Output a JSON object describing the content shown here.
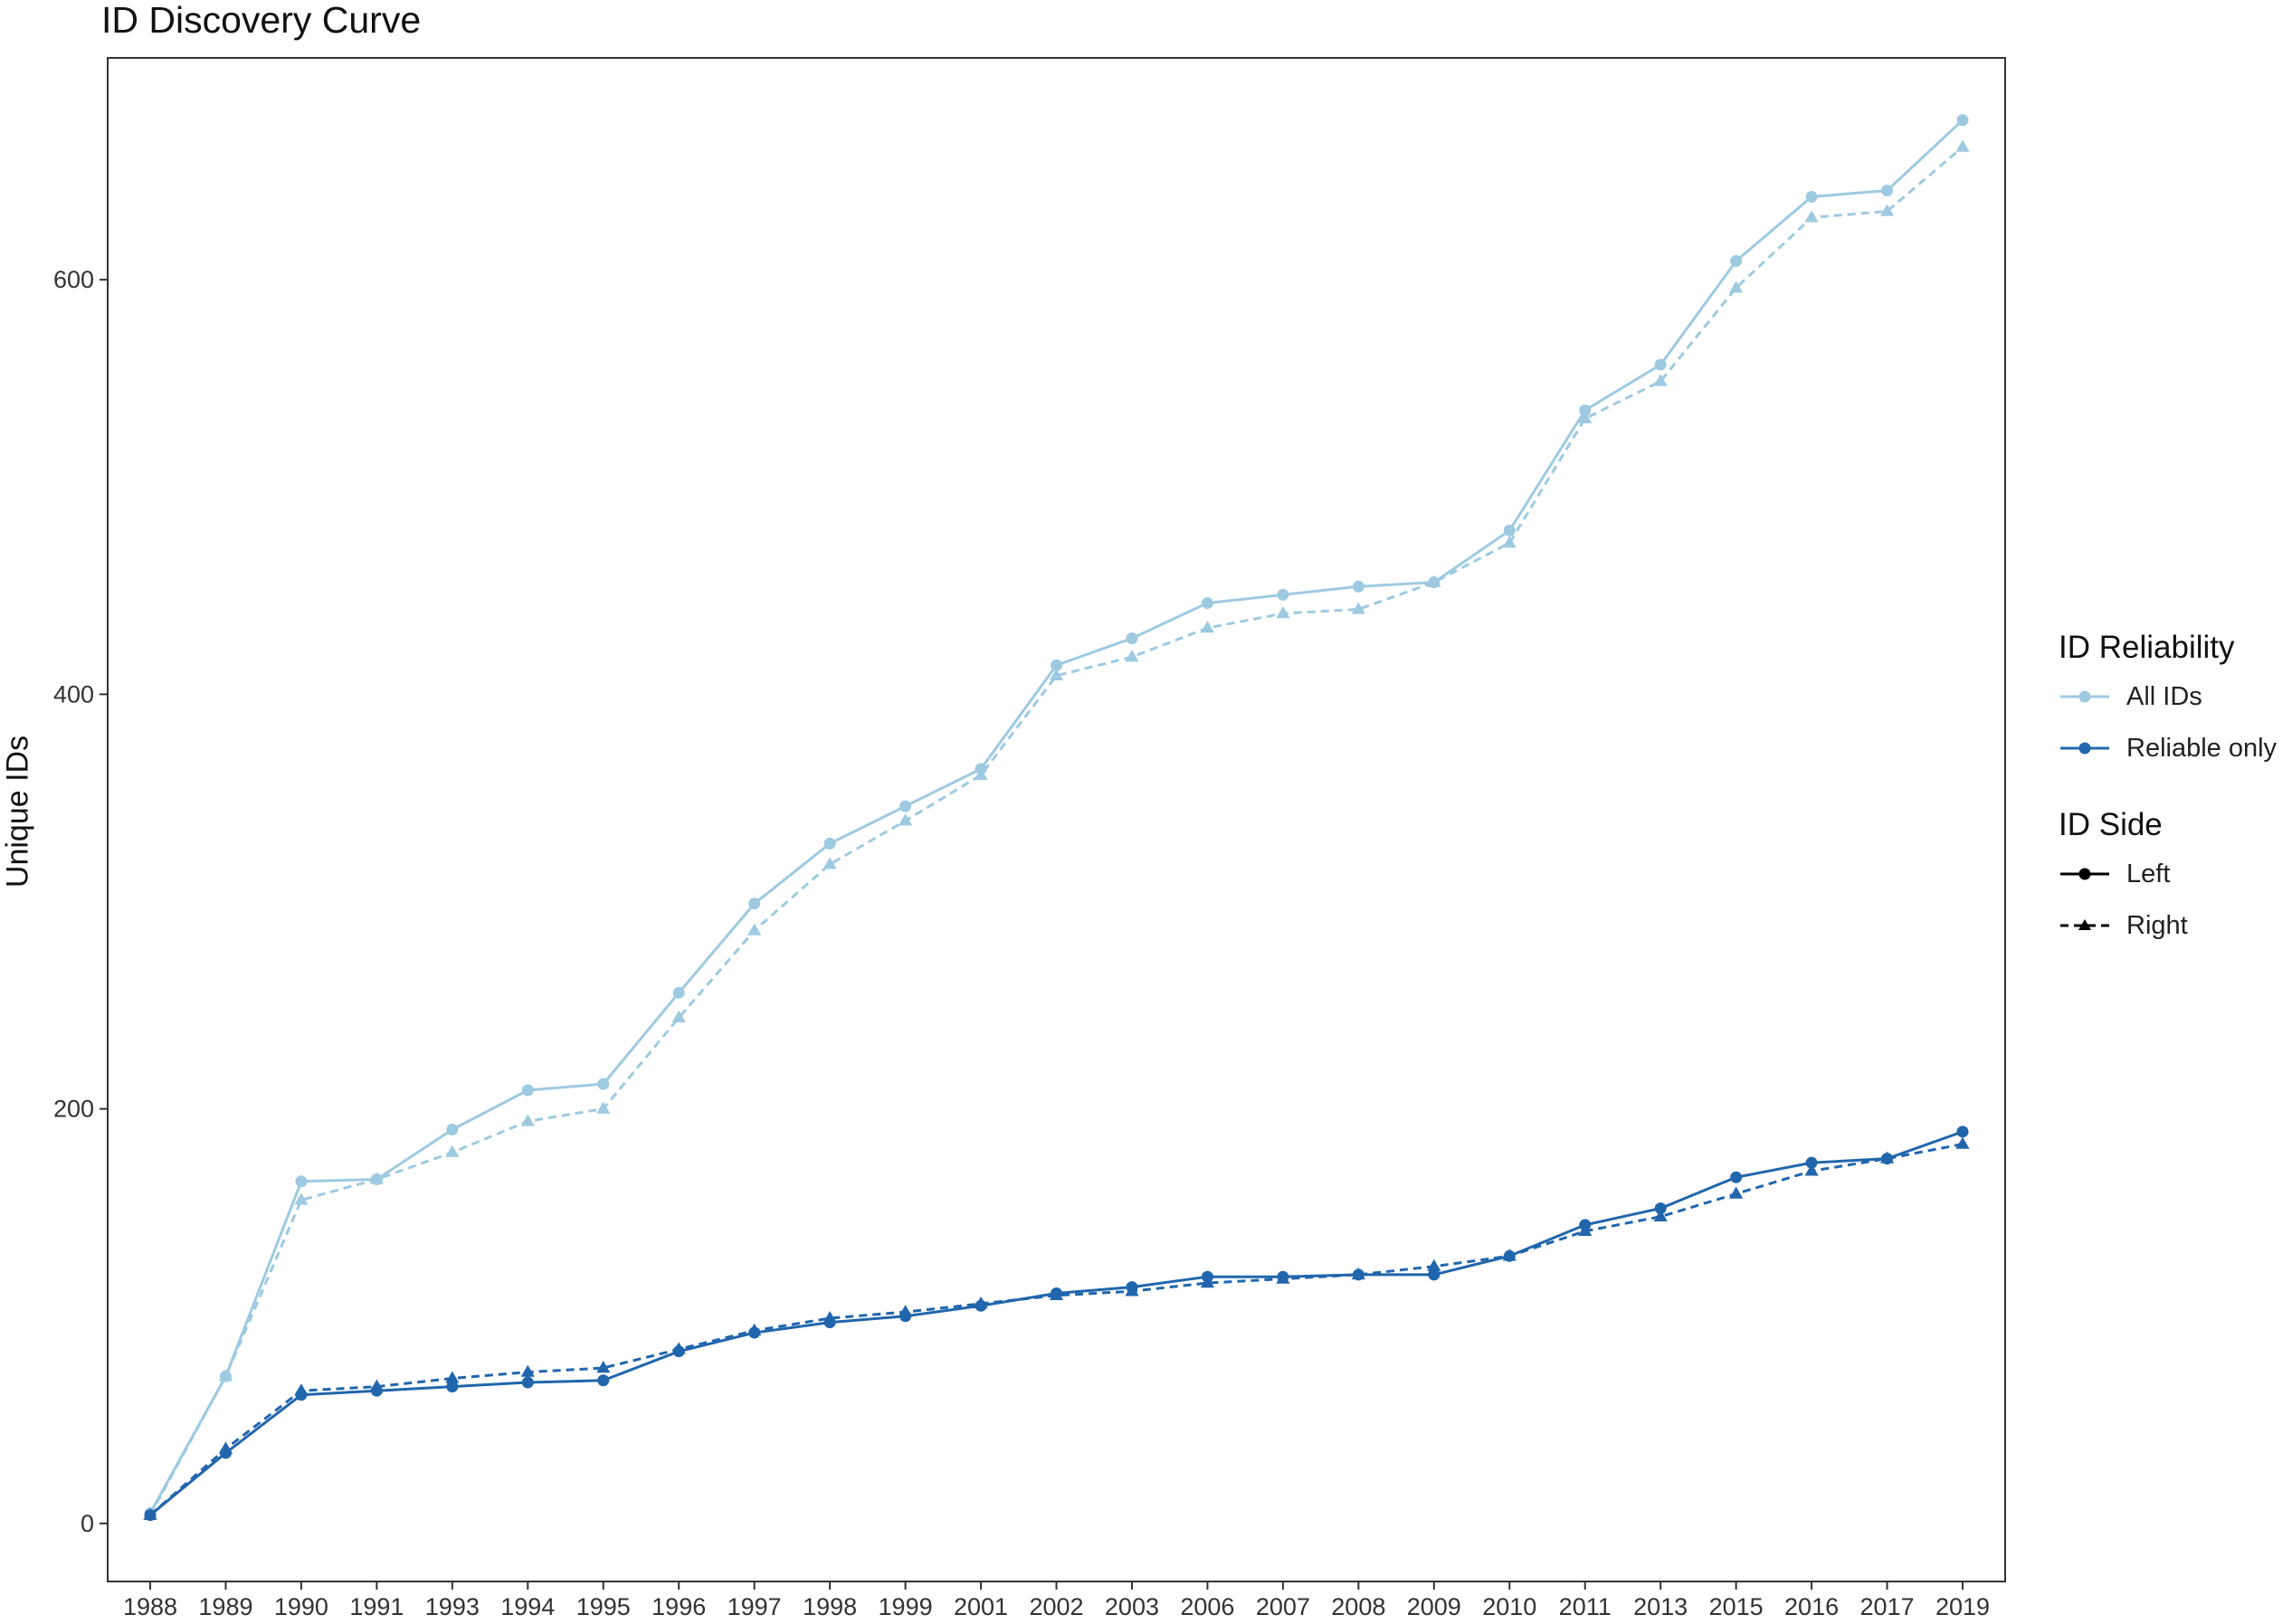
{
  "chart_data": {
    "type": "line",
    "title": "ID Discovery Curve",
    "xlabel": "",
    "ylabel": "Unique IDs",
    "categories": [
      "1988",
      "1989",
      "1990",
      "1991",
      "1993",
      "1994",
      "1995",
      "1996",
      "1997",
      "1998",
      "1999",
      "2001",
      "2002",
      "2003",
      "2006",
      "2007",
      "2008",
      "2009",
      "2010",
      "2011",
      "2013",
      "2015",
      "2016",
      "2017",
      "2019"
    ],
    "ylim": [
      -28,
      707
    ],
    "yticks": [
      0,
      200,
      400,
      600
    ],
    "grid": false,
    "legend_position": "right",
    "series": [
      {
        "reliability": "All IDs",
        "side": "Left",
        "color": "#9ecae1",
        "dash": "solid",
        "marker": "circle",
        "values": [
          5,
          71,
          165,
          166,
          190,
          209,
          212,
          256,
          299,
          328,
          346,
          364,
          414,
          427,
          444,
          448,
          452,
          454,
          479,
          537,
          559,
          609,
          640,
          643,
          677
        ]
      },
      {
        "reliability": "All IDs",
        "side": "Right",
        "color": "#9ecae1",
        "dash": "dashed",
        "marker": "triangle",
        "values": [
          4,
          71,
          156,
          166,
          179,
          194,
          200,
          244,
          286,
          318,
          339,
          361,
          409,
          418,
          432,
          439,
          441,
          454,
          473,
          533,
          551,
          596,
          630,
          633,
          664
        ]
      },
      {
        "reliability": "Reliable only",
        "side": "Left",
        "color": "#2166ac",
        "dash": "solid",
        "marker": "circle",
        "values": [
          4,
          34,
          62,
          64,
          66,
          68,
          69,
          83,
          92,
          97,
          100,
          105,
          111,
          114,
          119,
          119,
          120,
          120,
          129,
          144,
          152,
          167,
          174,
          176,
          189
        ]
      },
      {
        "reliability": "Reliable only",
        "side": "Right",
        "color": "#2166ac",
        "dash": "dashed",
        "marker": "triangle",
        "values": [
          4,
          36,
          64,
          66,
          70,
          73,
          75,
          84,
          93,
          99,
          102,
          106,
          110,
          112,
          116,
          118,
          120,
          124,
          129,
          141,
          148,
          159,
          170,
          176,
          183
        ]
      }
    ],
    "legend": {
      "reliability_title": "ID Reliability",
      "reliability_items": [
        {
          "label": "All IDs",
          "color": "#9ecae1"
        },
        {
          "label": "Reliable only",
          "color": "#2166ac"
        }
      ],
      "side_title": "ID Side",
      "side_items": [
        {
          "label": "Left",
          "dash": "solid",
          "marker": "circle"
        },
        {
          "label": "Right",
          "dash": "dashed",
          "marker": "triangle"
        }
      ]
    }
  }
}
